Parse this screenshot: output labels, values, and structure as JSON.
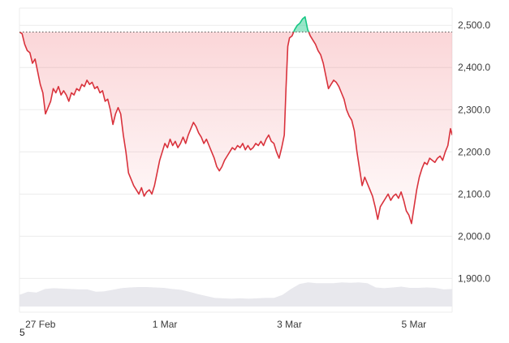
{
  "chart_data": {
    "type": "line",
    "title": "",
    "xlabel": "",
    "ylabel": "",
    "baseline": 2484,
    "ylim": [
      1845,
      2560
    ],
    "y_ticks": [
      {
        "value": 1900,
        "label": "1,900.0"
      },
      {
        "value": 2000,
        "label": "2,000.0"
      },
      {
        "value": 2100,
        "label": "2,100.0"
      },
      {
        "value": 2200,
        "label": "2,200.0"
      },
      {
        "value": 2300,
        "label": "2,300.0"
      },
      {
        "value": 2400,
        "label": "2,400.0"
      },
      {
        "value": 2500,
        "label": "2,500.0"
      }
    ],
    "x_ticks": [
      {
        "t": 0.0484,
        "label": "27 Feb"
      },
      {
        "t": 0.3361,
        "label": "1 Mar"
      },
      {
        "t": 0.6238,
        "label": "3 Mar"
      },
      {
        "t": 0.9115,
        "label": "5 Mar"
      }
    ],
    "colors": {
      "above": "#16c784",
      "below": "#ea3943",
      "line_below": "#d9323c",
      "grid": "#ececec",
      "volume": "#e8e8ed"
    },
    "series": [
      {
        "points": [
          [
            0.0,
            2484
          ],
          [
            0.006,
            2480
          ],
          [
            0.012,
            2455
          ],
          [
            0.018,
            2440
          ],
          [
            0.024,
            2435
          ],
          [
            0.03,
            2410
          ],
          [
            0.036,
            2420
          ],
          [
            0.042,
            2390
          ],
          [
            0.048,
            2360
          ],
          [
            0.054,
            2340
          ],
          [
            0.06,
            2290
          ],
          [
            0.066,
            2305
          ],
          [
            0.072,
            2320
          ],
          [
            0.078,
            2350
          ],
          [
            0.084,
            2340
          ],
          [
            0.09,
            2355
          ],
          [
            0.096,
            2335
          ],
          [
            0.102,
            2345
          ],
          [
            0.108,
            2335
          ],
          [
            0.114,
            2320
          ],
          [
            0.12,
            2340
          ],
          [
            0.126,
            2335
          ],
          [
            0.132,
            2350
          ],
          [
            0.138,
            2345
          ],
          [
            0.144,
            2360
          ],
          [
            0.15,
            2355
          ],
          [
            0.156,
            2370
          ],
          [
            0.162,
            2360
          ],
          [
            0.168,
            2365
          ],
          [
            0.174,
            2350
          ],
          [
            0.18,
            2355
          ],
          [
            0.186,
            2340
          ],
          [
            0.192,
            2345
          ],
          [
            0.198,
            2320
          ],
          [
            0.204,
            2325
          ],
          [
            0.21,
            2300
          ],
          [
            0.216,
            2265
          ],
          [
            0.222,
            2290
          ],
          [
            0.228,
            2305
          ],
          [
            0.234,
            2290
          ],
          [
            0.24,
            2240
          ],
          [
            0.246,
            2200
          ],
          [
            0.252,
            2150
          ],
          [
            0.258,
            2135
          ],
          [
            0.264,
            2120
          ],
          [
            0.27,
            2110
          ],
          [
            0.276,
            2100
          ],
          [
            0.282,
            2115
          ],
          [
            0.288,
            2095
          ],
          [
            0.294,
            2105
          ],
          [
            0.3,
            2110
          ],
          [
            0.306,
            2100
          ],
          [
            0.312,
            2120
          ],
          [
            0.318,
            2150
          ],
          [
            0.324,
            2180
          ],
          [
            0.33,
            2200
          ],
          [
            0.336,
            2220
          ],
          [
            0.342,
            2210
          ],
          [
            0.348,
            2230
          ],
          [
            0.354,
            2215
          ],
          [
            0.36,
            2225
          ],
          [
            0.366,
            2210
          ],
          [
            0.372,
            2220
          ],
          [
            0.378,
            2235
          ],
          [
            0.384,
            2220
          ],
          [
            0.39,
            2240
          ],
          [
            0.396,
            2255
          ],
          [
            0.402,
            2270
          ],
          [
            0.408,
            2260
          ],
          [
            0.414,
            2245
          ],
          [
            0.42,
            2235
          ],
          [
            0.426,
            2220
          ],
          [
            0.432,
            2230
          ],
          [
            0.438,
            2215
          ],
          [
            0.444,
            2200
          ],
          [
            0.45,
            2185
          ],
          [
            0.456,
            2165
          ],
          [
            0.462,
            2155
          ],
          [
            0.468,
            2165
          ],
          [
            0.474,
            2180
          ],
          [
            0.48,
            2190
          ],
          [
            0.486,
            2200
          ],
          [
            0.492,
            2210
          ],
          [
            0.498,
            2205
          ],
          [
            0.504,
            2215
          ],
          [
            0.51,
            2210
          ],
          [
            0.516,
            2220
          ],
          [
            0.522,
            2205
          ],
          [
            0.528,
            2215
          ],
          [
            0.534,
            2205
          ],
          [
            0.54,
            2210
          ],
          [
            0.546,
            2220
          ],
          [
            0.552,
            2215
          ],
          [
            0.558,
            2225
          ],
          [
            0.564,
            2215
          ],
          [
            0.57,
            2230
          ],
          [
            0.576,
            2240
          ],
          [
            0.582,
            2225
          ],
          [
            0.588,
            2220
          ],
          [
            0.594,
            2200
          ],
          [
            0.6,
            2185
          ],
          [
            0.606,
            2210
          ],
          [
            0.612,
            2240
          ],
          [
            0.616,
            2350
          ],
          [
            0.62,
            2450
          ],
          [
            0.624,
            2470
          ],
          [
            0.63,
            2475
          ],
          [
            0.636,
            2490
          ],
          [
            0.642,
            2500
          ],
          [
            0.648,
            2505
          ],
          [
            0.654,
            2515
          ],
          [
            0.66,
            2520
          ],
          [
            0.666,
            2490
          ],
          [
            0.672,
            2475
          ],
          [
            0.678,
            2465
          ],
          [
            0.684,
            2455
          ],
          [
            0.69,
            2440
          ],
          [
            0.696,
            2430
          ],
          [
            0.702,
            2410
          ],
          [
            0.708,
            2380
          ],
          [
            0.714,
            2350
          ],
          [
            0.72,
            2360
          ],
          [
            0.726,
            2370
          ],
          [
            0.732,
            2365
          ],
          [
            0.738,
            2355
          ],
          [
            0.744,
            2340
          ],
          [
            0.75,
            2325
          ],
          [
            0.756,
            2300
          ],
          [
            0.762,
            2285
          ],
          [
            0.768,
            2275
          ],
          [
            0.774,
            2250
          ],
          [
            0.78,
            2200
          ],
          [
            0.786,
            2160
          ],
          [
            0.792,
            2120
          ],
          [
            0.798,
            2140
          ],
          [
            0.804,
            2125
          ],
          [
            0.81,
            2110
          ],
          [
            0.816,
            2095
          ],
          [
            0.822,
            2070
          ],
          [
            0.828,
            2040
          ],
          [
            0.834,
            2070
          ],
          [
            0.84,
            2080
          ],
          [
            0.846,
            2090
          ],
          [
            0.852,
            2100
          ],
          [
            0.858,
            2085
          ],
          [
            0.864,
            2095
          ],
          [
            0.87,
            2100
          ],
          [
            0.876,
            2090
          ],
          [
            0.882,
            2105
          ],
          [
            0.888,
            2085
          ],
          [
            0.894,
            2060
          ],
          [
            0.9,
            2050
          ],
          [
            0.906,
            2030
          ],
          [
            0.912,
            2070
          ],
          [
            0.918,
            2110
          ],
          [
            0.924,
            2140
          ],
          [
            0.93,
            2160
          ],
          [
            0.936,
            2175
          ],
          [
            0.942,
            2170
          ],
          [
            0.948,
            2185
          ],
          [
            0.954,
            2180
          ],
          [
            0.96,
            2175
          ],
          [
            0.966,
            2185
          ],
          [
            0.972,
            2190
          ],
          [
            0.978,
            2180
          ],
          [
            0.984,
            2200
          ],
          [
            0.99,
            2215
          ],
          [
            0.996,
            2255
          ],
          [
            1.0,
            2240
          ]
        ]
      }
    ],
    "volume": [
      0.3,
      0.38,
      0.36,
      0.45,
      0.47,
      0.46,
      0.45,
      0.44,
      0.44,
      0.38,
      0.39,
      0.43,
      0.47,
      0.49,
      0.5,
      0.5,
      0.49,
      0.48,
      0.45,
      0.43,
      0.38,
      0.32,
      0.27,
      0.22,
      0.21,
      0.2,
      0.21,
      0.2,
      0.21,
      0.22,
      0.22,
      0.3,
      0.45,
      0.58,
      0.62,
      0.6,
      0.6,
      0.6,
      0.62,
      0.61,
      0.62,
      0.6,
      0.49,
      0.47,
      0.49,
      0.51,
      0.48,
      0.48,
      0.49,
      0.48,
      0.44,
      0.45
    ]
  },
  "footer": {
    "corner_label": "5"
  }
}
